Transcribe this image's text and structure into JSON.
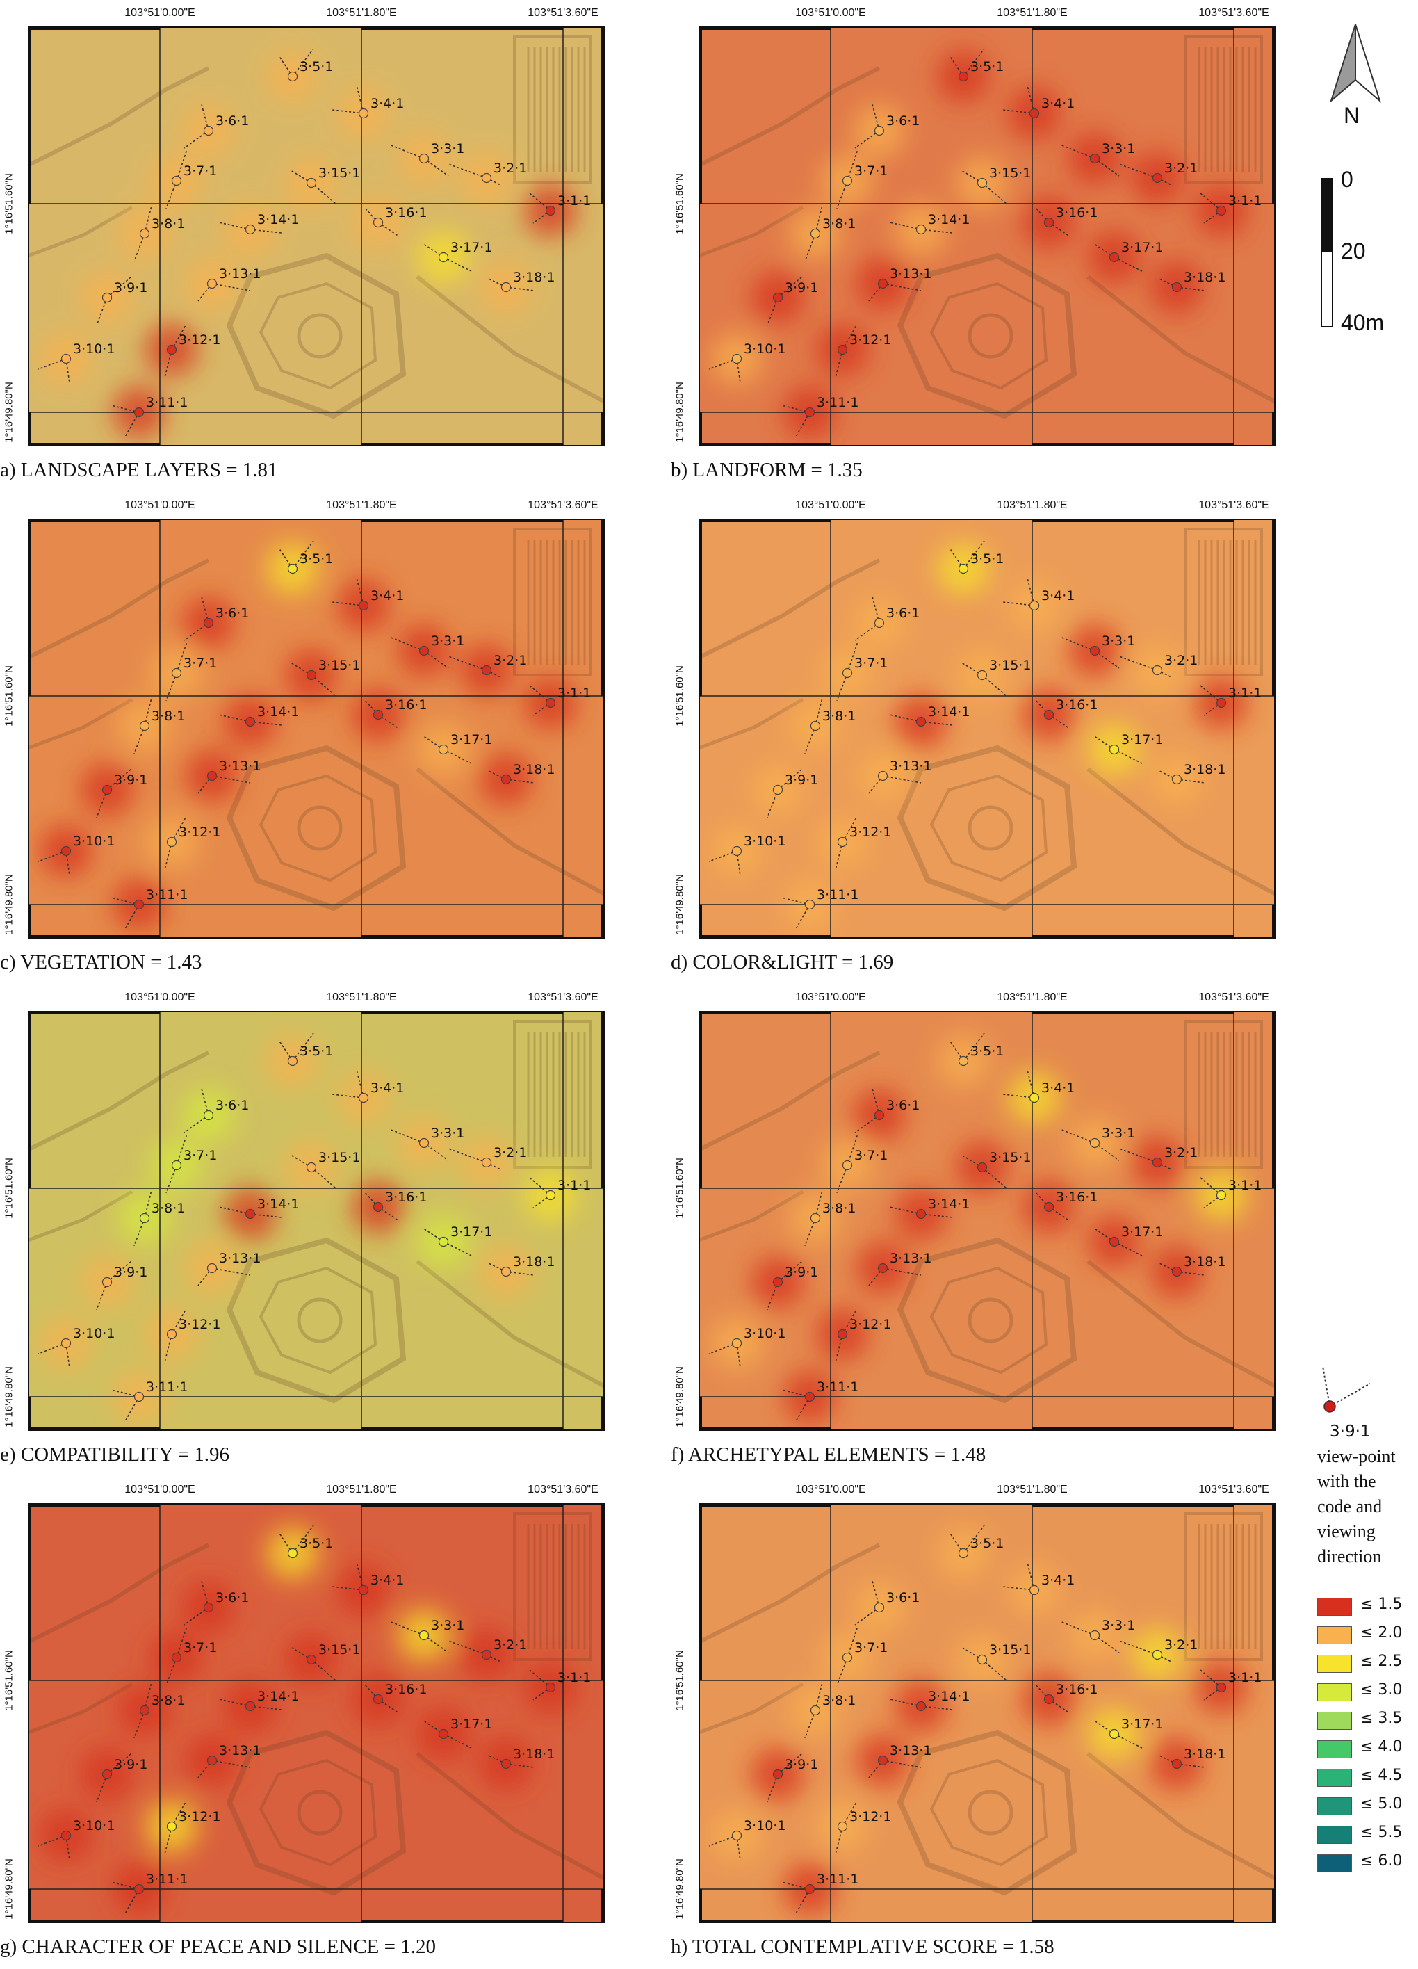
{
  "axes": {
    "top_ticks": [
      "103°51'0.00\"E",
      "103°51'1.80\"E",
      "103°51'3.60\"E"
    ],
    "left_ticks": [
      "1°16'51.60\"N",
      "1°16'49.80\"N"
    ]
  },
  "viewpoints": [
    {
      "code": "3·1·1"
    },
    {
      "code": "3·2·1"
    },
    {
      "code": "3·3·1"
    },
    {
      "code": "3·4·1"
    },
    {
      "code": "3·5·1"
    },
    {
      "code": "3·6·1"
    },
    {
      "code": "3·7·1"
    },
    {
      "code": "3·8·1"
    },
    {
      "code": "3·9·1"
    },
    {
      "code": "3·10·1"
    },
    {
      "code": "3·11·1"
    },
    {
      "code": "3·12·1"
    },
    {
      "code": "3·13·1"
    },
    {
      "code": "3·14·1"
    },
    {
      "code": "3·15·1"
    },
    {
      "code": "3·16·1"
    },
    {
      "code": "3·17·1"
    },
    {
      "code": "3·18·1"
    }
  ],
  "panels": [
    {
      "letter": "a)",
      "caption": "a)  LANDSCAPE LAYERS = 1.81",
      "base_color": "#d8b868",
      "scores": [
        "≤ 1.5",
        "≤ 2.0",
        "≤ 2.0",
        "≤ 2.0",
        "≤ 2.0",
        "≤ 2.0",
        "≤ 2.0",
        "≤ 2.0",
        "≤ 2.0",
        "≤ 2.0",
        "≤ 1.5",
        "≤ 1.5",
        "≤ 2.0",
        "≤ 2.0",
        "≤ 2.0",
        "≤ 2.0",
        "≤ 2.5",
        "≤ 2.0"
      ]
    },
    {
      "letter": "b)",
      "caption": "b)  LANDFORM = 1.35",
      "base_color": "#e07a4a",
      "scores": [
        "≤ 1.5",
        "≤ 1.5",
        "≤ 1.5",
        "≤ 1.5",
        "≤ 1.5",
        "≤ 2.0",
        "≤ 2.0",
        "≤ 2.0",
        "≤ 1.5",
        "≤ 2.0",
        "≤ 1.5",
        "≤ 1.5",
        "≤ 1.5",
        "≤ 2.0",
        "≤ 2.0",
        "≤ 1.5",
        "≤ 1.5",
        "≤ 1.5"
      ]
    },
    {
      "letter": "c)",
      "caption": "c)  VEGETATION = 1.43",
      "base_color": "#e58a4c",
      "scores": [
        "≤ 1.5",
        "≤ 1.5",
        "≤ 1.5",
        "≤ 1.5",
        "≤ 2.5",
        "≤ 1.5",
        "≤ 2.0",
        "≤ 2.0",
        "≤ 1.5",
        "≤ 1.5",
        "≤ 1.5",
        "≤ 2.0",
        "≤ 1.5",
        "≤ 1.5",
        "≤ 1.5",
        "≤ 1.5",
        "≤ 2.0",
        "≤ 1.5"
      ]
    },
    {
      "letter": "d)",
      "caption": "d)  COLOR&LIGHT = 1.69",
      "base_color": "#eb9c58",
      "scores": [
        "≤ 1.5",
        "≤ 2.0",
        "≤ 1.5",
        "≤ 2.0",
        "≤ 2.5",
        "≤ 2.0",
        "≤ 2.0",
        "≤ 2.0",
        "≤ 2.0",
        "≤ 2.0",
        "≤ 2.0",
        "≤ 2.0",
        "≤ 2.0",
        "≤ 1.5",
        "≤ 2.0",
        "≤ 1.5",
        "≤ 2.5",
        "≤ 2.0"
      ]
    },
    {
      "letter": "e)",
      "caption": "e)  COMPATIBILITY = 1.96",
      "base_color": "#cfc061",
      "scores": [
        "≤ 2.5",
        "≤ 2.0",
        "≤ 2.0",
        "≤ 2.0",
        "≤ 2.0",
        "≤ 3.0",
        "≤ 3.0",
        "≤ 3.0",
        "≤ 2.0",
        "≤ 2.0",
        "≤ 2.0",
        "≤ 2.0",
        "≤ 2.0",
        "≤ 1.5",
        "≤ 2.0",
        "≤ 1.5",
        "≤ 3.0",
        "≤ 2.0"
      ]
    },
    {
      "letter": "f)",
      "caption": "f)  ARCHETYPAL ELEMENTS = 1.48",
      "base_color": "#e48a50",
      "scores": [
        "≤ 2.5",
        "≤ 1.5",
        "≤ 2.0",
        "≤ 2.5",
        "≤ 2.0",
        "≤ 1.5",
        "≤ 2.0",
        "≤ 2.0",
        "≤ 1.5",
        "≤ 2.0",
        "≤ 1.5",
        "≤ 1.5",
        "≤ 1.5",
        "≤ 1.5",
        "≤ 1.5",
        "≤ 1.5",
        "≤ 1.5",
        "≤ 1.5"
      ]
    },
    {
      "letter": "g)",
      "caption": "g)  CHARACTER OF PEACE AND SILENCE = 1.20",
      "base_color": "#d9603e",
      "scores": [
        "≤ 1.5",
        "≤ 1.5",
        "≤ 2.5",
        "≤ 1.5",
        "≤ 2.5",
        "≤ 1.5",
        "≤ 1.5",
        "≤ 1.5",
        "≤ 1.5",
        "≤ 1.5",
        "≤ 1.5",
        "≤ 2.5",
        "≤ 1.5",
        "≤ 1.5",
        "≤ 1.5",
        "≤ 1.5",
        "≤ 1.5",
        "≤ 1.5"
      ]
    },
    {
      "letter": "h)",
      "caption": "h)  TOTAL CONTEMPLATIVE SCORE = 1.58",
      "base_color": "#e89656",
      "scores": [
        "≤ 1.5",
        "≤ 2.5",
        "≤ 2.0",
        "≤ 2.0",
        "≤ 2.0",
        "≤ 2.0",
        "≤ 2.0",
        "≤ 2.0",
        "≤ 1.5",
        "≤ 2.0",
        "≤ 1.5",
        "≤ 2.0",
        "≤ 1.5",
        "≤ 1.5",
        "≤ 2.0",
        "≤ 1.5",
        "≤ 2.5",
        "≤ 1.5"
      ]
    }
  ],
  "north_arrow": {
    "label": "N"
  },
  "scale_bar": {
    "labels": [
      "0",
      "20",
      "40m"
    ]
  },
  "viewpoint_legend": {
    "code": "3·9·1",
    "lines": [
      "view-point",
      "with the",
      "code and",
      "viewing",
      "direction"
    ]
  },
  "score_legend": [
    {
      "label": "≤ 1.5",
      "color": "#d7301f"
    },
    {
      "label": "≤ 2.0",
      "color": "#f9b14f"
    },
    {
      "label": "≤ 2.5",
      "color": "#f7e22c"
    },
    {
      "label": "≤ 3.0",
      "color": "#d6ea3c"
    },
    {
      "label": "≤ 3.5",
      "color": "#9fda5c"
    },
    {
      "label": "≤ 4.0",
      "color": "#45c968"
    },
    {
      "label": "≤ 4.5",
      "color": "#2bb277"
    },
    {
      "label": "≤ 5.0",
      "color": "#1f957a"
    },
    {
      "label": "≤ 5.5",
      "color": "#168077"
    },
    {
      "label": "≤ 6.0",
      "color": "#0e5f78"
    }
  ]
}
